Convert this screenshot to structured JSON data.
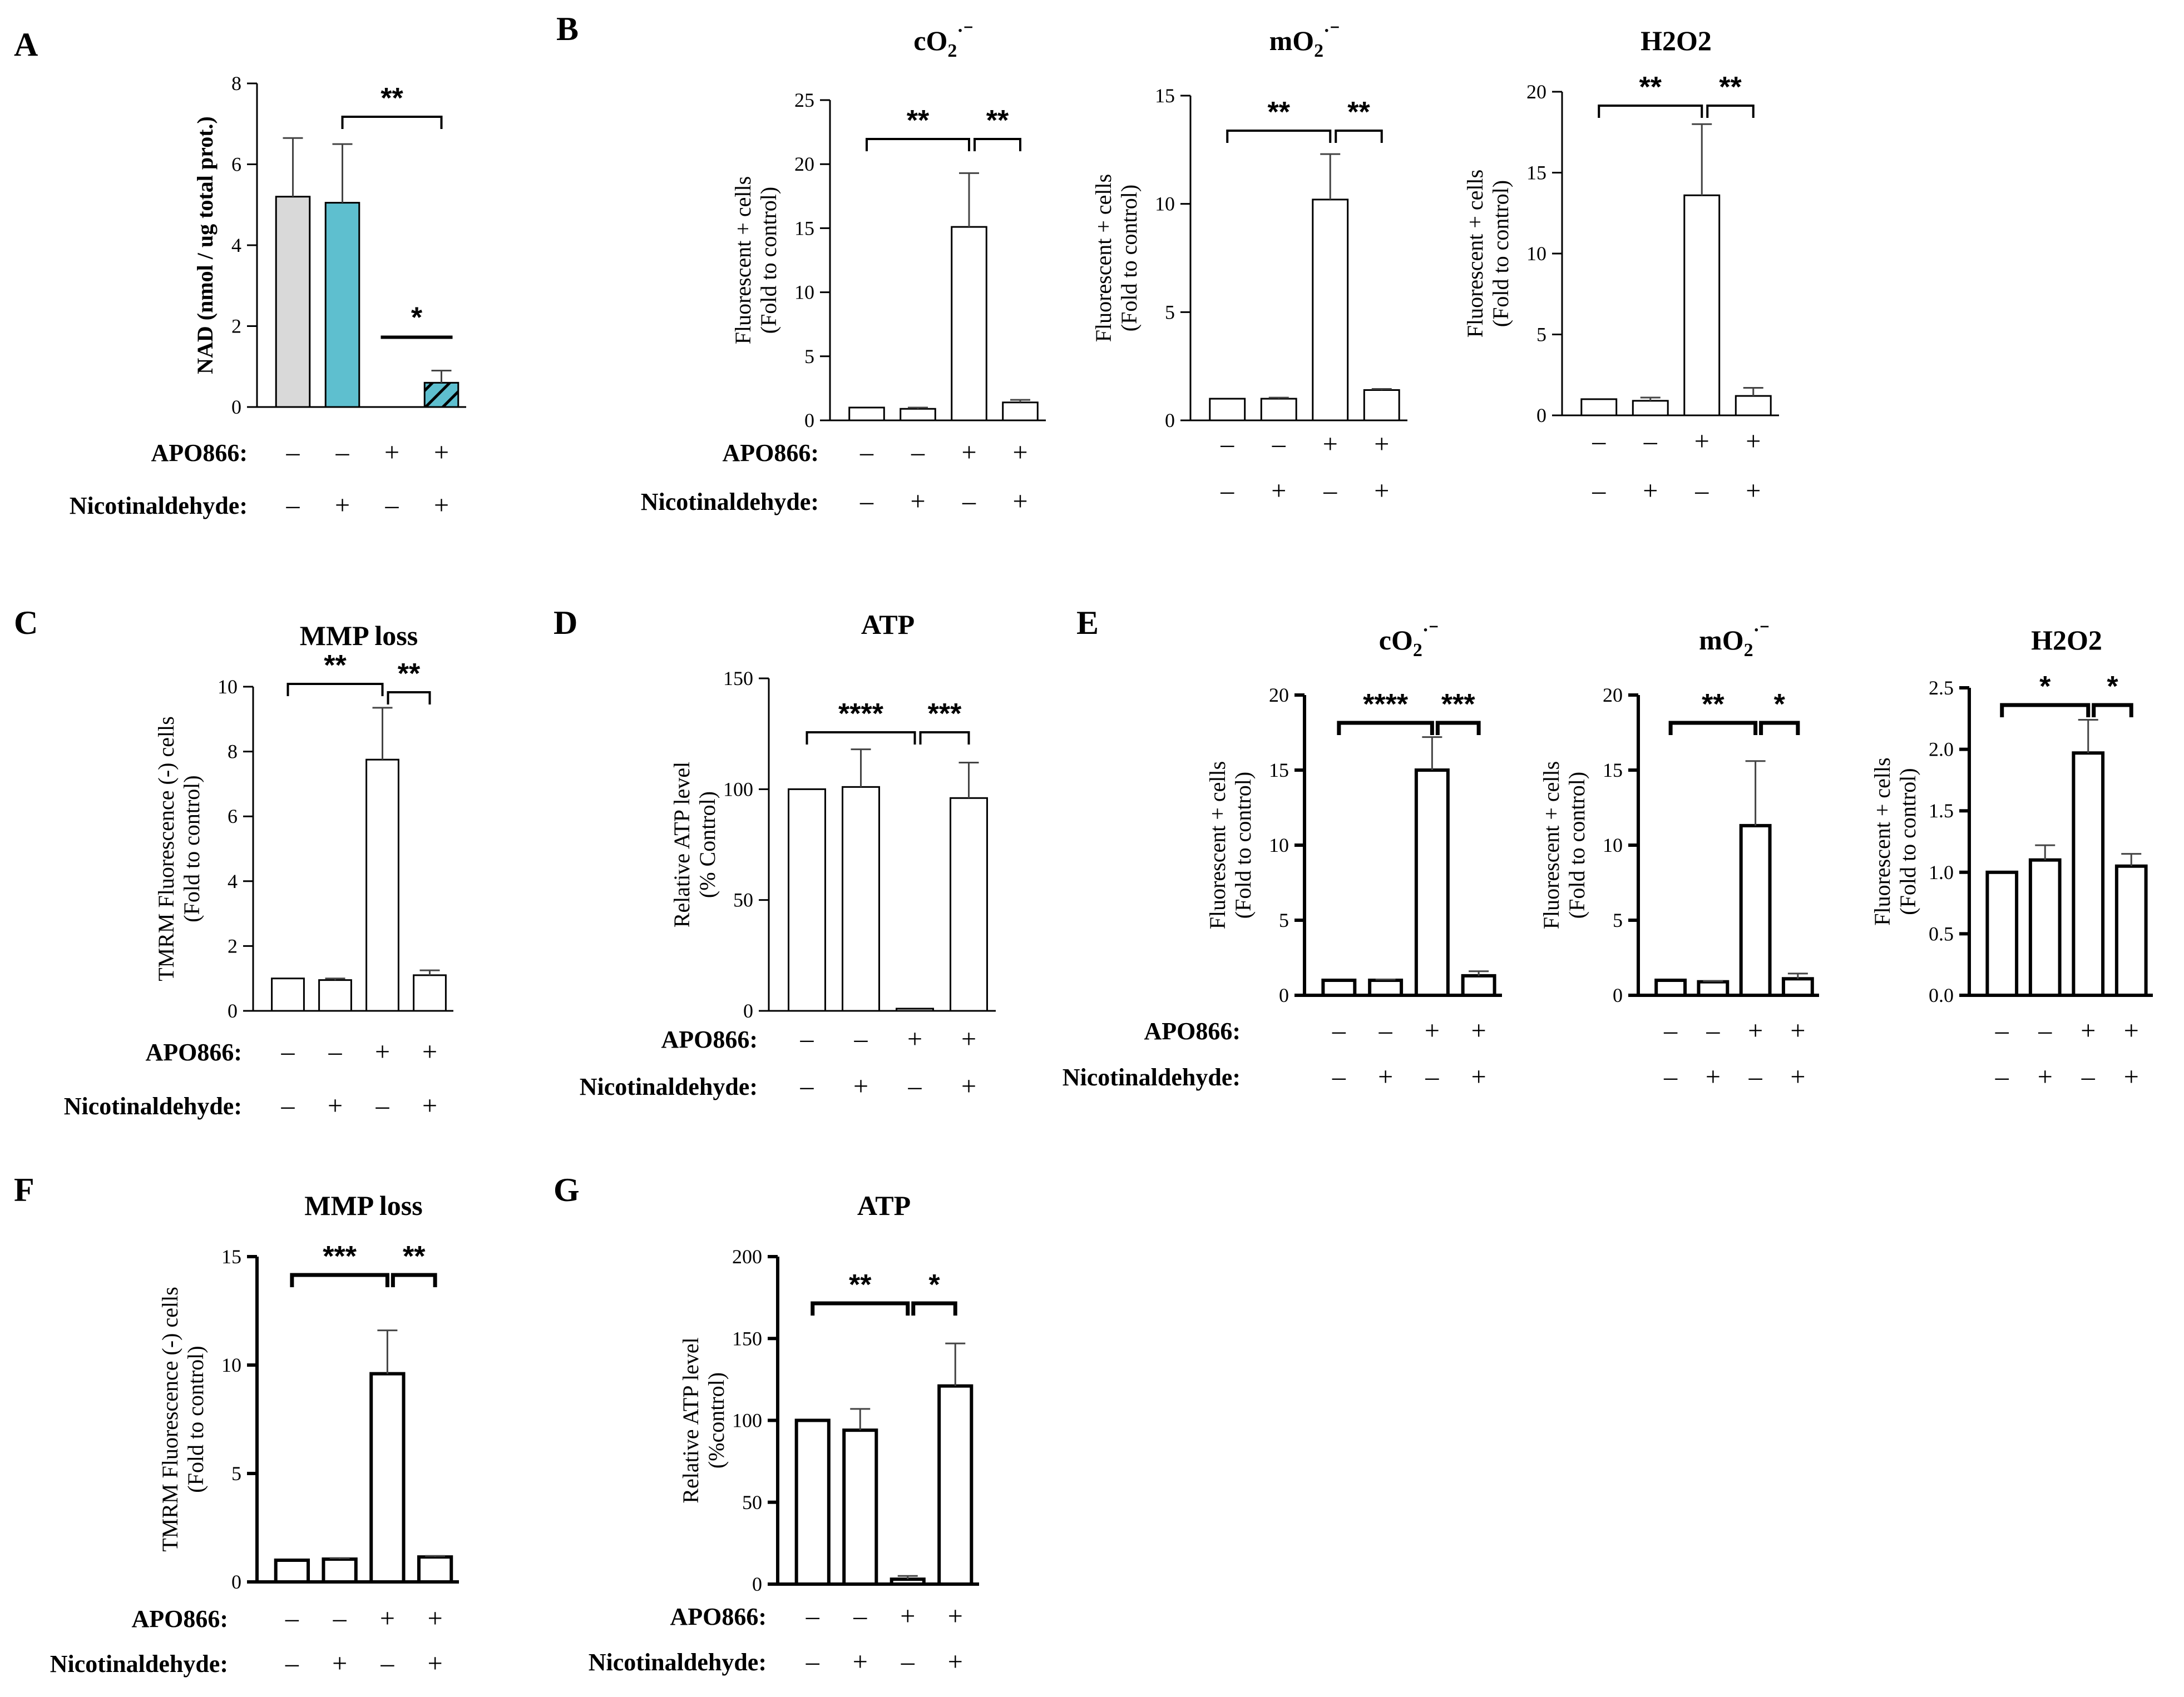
{
  "chart_data": [
    {
      "id": "A",
      "panel_label": "A",
      "type": "bar",
      "title": "",
      "ylabel": "NAD (nmol / ug total prot.)",
      "ylabel_bold": true,
      "ylim": [
        0,
        8
      ],
      "yticks": [
        "0",
        "2",
        "4",
        "6",
        "8"
      ],
      "values": [
        5.2,
        5.05,
        0.0,
        0.6
      ],
      "errors": [
        1.45,
        1.45,
        0.0,
        0.3
      ],
      "colors": [
        "#d9d9d9",
        "#5ebfcf",
        "#ffffff",
        "#5ebfcf"
      ],
      "hatched": [
        false,
        false,
        false,
        true
      ],
      "conditions": {
        "APO866": [
          "–",
          "–",
          "+",
          "+"
        ],
        "Nicotinaldehyde": [
          "–",
          "+",
          "–",
          "+"
        ]
      },
      "significance": [
        {
          "from": 1,
          "to": 3,
          "label": "**",
          "style": "bracket"
        },
        {
          "from": 2,
          "to": 3,
          "label": "*",
          "style": "line"
        }
      ]
    },
    {
      "id": "B1",
      "panel_label": "B",
      "type": "bar",
      "title": "cO2·⁻",
      "ylabel": [
        "Fluorescent + cells",
        "(Fold to control)"
      ],
      "ylim": [
        0,
        25
      ],
      "yticks": [
        "0",
        "5",
        "10",
        "15",
        "20",
        "25"
      ],
      "values": [
        1.0,
        0.9,
        15.1,
        1.4
      ],
      "errors": [
        0.0,
        0.1,
        4.2,
        0.2
      ],
      "conditions": {
        "APO866": [
          "–",
          "–",
          "+",
          "+"
        ],
        "Nicotinaldehyde": [
          "–",
          "+",
          "–",
          "+"
        ]
      },
      "significance": [
        {
          "from": 0,
          "to": 2,
          "label": "**",
          "style": "bracket"
        },
        {
          "from": 2,
          "to": 3,
          "label": "**",
          "style": "bracket"
        }
      ]
    },
    {
      "id": "B2",
      "panel_label": "",
      "type": "bar",
      "title": "mO2·⁻",
      "ylabel": [
        "Fluorescent + cells",
        "(Fold to control)"
      ],
      "ylim": [
        0,
        15
      ],
      "yticks": [
        "0",
        "5",
        "10",
        "15"
      ],
      "values": [
        1.0,
        1.0,
        10.2,
        1.4
      ],
      "errors": [
        0.0,
        0.05,
        2.1,
        0.05
      ],
      "conditions": {
        "APO866": [
          "–",
          "–",
          "+",
          "+"
        ],
        "Nicotinaldehyde": [
          "–",
          "+",
          "–",
          "+"
        ]
      },
      "significance": [
        {
          "from": 0,
          "to": 2,
          "label": "**",
          "style": "bracket"
        },
        {
          "from": 2,
          "to": 3,
          "label": "**",
          "style": "bracket"
        }
      ]
    },
    {
      "id": "B3",
      "panel_label": "",
      "type": "bar",
      "title": "H2O2",
      "ylabel": [
        "Fluorescent + cells",
        "(Fold to control)"
      ],
      "ylim": [
        0,
        20
      ],
      "yticks": [
        "0",
        "5",
        "10",
        "15",
        "20"
      ],
      "values": [
        1.0,
        0.9,
        13.6,
        1.2
      ],
      "errors": [
        0.0,
        0.2,
        4.4,
        0.5
      ],
      "conditions": {
        "APO866": [
          "–",
          "–",
          "+",
          "+"
        ],
        "Nicotinaldehyde": [
          "–",
          "+",
          "–",
          "+"
        ]
      },
      "significance": [
        {
          "from": 0,
          "to": 2,
          "label": "**",
          "style": "bracket"
        },
        {
          "from": 2,
          "to": 3,
          "label": "**",
          "style": "bracket"
        }
      ]
    },
    {
      "id": "C",
      "panel_label": "C",
      "type": "bar",
      "title": "MMP loss",
      "ylabel": [
        "TMRM Fluorescence (-) cells",
        "(Fold to control)"
      ],
      "ylim": [
        0,
        10
      ],
      "yticks": [
        "0",
        "2",
        "4",
        "6",
        "8",
        "10"
      ],
      "values": [
        1.0,
        0.95,
        7.75,
        1.1
      ],
      "errors": [
        0.0,
        0.05,
        1.6,
        0.15
      ],
      "conditions": {
        "APO866": [
          "–",
          "–",
          "+",
          "+"
        ],
        "Nicotinaldehyde": [
          "–",
          "+",
          "–",
          "+"
        ]
      },
      "significance": [
        {
          "from": 0,
          "to": 2,
          "label": "**",
          "style": "bracket"
        },
        {
          "from": 2,
          "to": 3,
          "label": "**",
          "style": "bracket"
        }
      ]
    },
    {
      "id": "D",
      "panel_label": "D",
      "type": "bar",
      "title": "ATP",
      "ylabel": [
        "Relative ATP level",
        "(% Control)"
      ],
      "ylim": [
        0,
        150
      ],
      "yticks": [
        "0",
        "50",
        "100",
        "150"
      ],
      "values": [
        100,
        101,
        1,
        96
      ],
      "errors": [
        0,
        17,
        0,
        16
      ],
      "conditions": {
        "APO866": [
          "–",
          "–",
          "+",
          "+"
        ],
        "Nicotinaldehyde": [
          "–",
          "+",
          "–",
          "+"
        ]
      },
      "significance": [
        {
          "from": 0,
          "to": 2,
          "label": "****",
          "style": "bracket"
        },
        {
          "from": 2,
          "to": 3,
          "label": "***",
          "style": "bracket"
        }
      ]
    },
    {
      "id": "E1",
      "panel_label": "E",
      "type": "bar",
      "title": "cO2·⁻",
      "ylabel": [
        "Fluorescent + cells",
        "(Fold to control)"
      ],
      "ylim": [
        0,
        20
      ],
      "yticks": [
        "0",
        "5",
        "10",
        "15",
        "20"
      ],
      "values": [
        1.0,
        1.0,
        15.0,
        1.3
      ],
      "errors": [
        0.0,
        0.05,
        2.2,
        0.3
      ],
      "conditions": {
        "APO866": [
          "–",
          "–",
          "+",
          "+"
        ],
        "Nicotinaldehyde": [
          "–",
          "+",
          "–",
          "+"
        ]
      },
      "significance": [
        {
          "from": 0,
          "to": 2,
          "label": "****",
          "style": "bracket"
        },
        {
          "from": 2,
          "to": 3,
          "label": "***",
          "style": "bracket"
        }
      ]
    },
    {
      "id": "E2",
      "panel_label": "",
      "type": "bar",
      "title": "mO2·⁻",
      "ylabel": [
        "Fluorescent + cells",
        "(Fold to control)"
      ],
      "ylim": [
        0,
        20
      ],
      "yticks": [
        "0",
        "5",
        "10",
        "15",
        "20"
      ],
      "values": [
        1.0,
        0.9,
        11.3,
        1.1
      ],
      "errors": [
        0.0,
        0.05,
        4.3,
        0.35
      ],
      "conditions": {
        "APO866": [
          "–",
          "–",
          "+",
          "+"
        ],
        "Nicotinaldehyde": [
          "–",
          "+",
          "–",
          "+"
        ]
      },
      "significance": [
        {
          "from": 0,
          "to": 2,
          "label": "**",
          "style": "bracket"
        },
        {
          "from": 2,
          "to": 3,
          "label": "*",
          "style": "bracket"
        }
      ]
    },
    {
      "id": "E3",
      "panel_label": "",
      "type": "bar",
      "title": "H2O2",
      "ylabel": [
        "Fluorescent + cells",
        "(Fold to control)"
      ],
      "ylim": [
        0,
        2.5
      ],
      "yticks": [
        "0.0",
        "0.5",
        "1.0",
        "1.5",
        "2.0",
        "2.5"
      ],
      "values": [
        1.0,
        1.1,
        1.97,
        1.05
      ],
      "errors": [
        0.0,
        0.12,
        0.27,
        0.1
      ],
      "conditions": {
        "APO866": [
          "–",
          "–",
          "+",
          "+"
        ],
        "Nicotinaldehyde": [
          "–",
          "+",
          "–",
          "+"
        ]
      },
      "significance": [
        {
          "from": 0,
          "to": 2,
          "label": "*",
          "style": "bracket"
        },
        {
          "from": 2,
          "to": 3,
          "label": "*",
          "style": "bracket"
        }
      ]
    },
    {
      "id": "F",
      "panel_label": "F",
      "type": "bar",
      "title": "MMP loss",
      "ylabel": [
        "TMRM Fluorescence (-) cells",
        "(Fold to control)"
      ],
      "ylim": [
        0,
        15
      ],
      "yticks": [
        "0",
        "5",
        "10",
        "15"
      ],
      "values": [
        1.0,
        1.05,
        9.6,
        1.15
      ],
      "errors": [
        0.0,
        0.05,
        2.0,
        0.05
      ],
      "conditions": {
        "APO866": [
          "–",
          "–",
          "+",
          "+"
        ],
        "Nicotinaldehyde": [
          "–",
          "+",
          "–",
          "+"
        ]
      },
      "significance": [
        {
          "from": 0,
          "to": 2,
          "label": "***",
          "style": "bracket"
        },
        {
          "from": 2,
          "to": 3,
          "label": "**",
          "style": "bracket"
        }
      ]
    },
    {
      "id": "G",
      "panel_label": "G",
      "type": "bar",
      "title": "ATP",
      "ylabel": [
        "Relative ATP level",
        "(%control)"
      ],
      "ylim": [
        0,
        200
      ],
      "yticks": [
        "0",
        "50",
        "100",
        "150",
        "200"
      ],
      "values": [
        100,
        94,
        3,
        121
      ],
      "errors": [
        0,
        13,
        2,
        26
      ],
      "conditions": {
        "APO866": [
          "–",
          "–",
          "+",
          "+"
        ],
        "Nicotinaldehyde": [
          "–",
          "+",
          "–",
          "+"
        ]
      },
      "significance": [
        {
          "from": 0,
          "to": 2,
          "label": "**",
          "style": "bracket"
        },
        {
          "from": 2,
          "to": 3,
          "label": "*",
          "style": "bracket"
        }
      ]
    }
  ]
}
